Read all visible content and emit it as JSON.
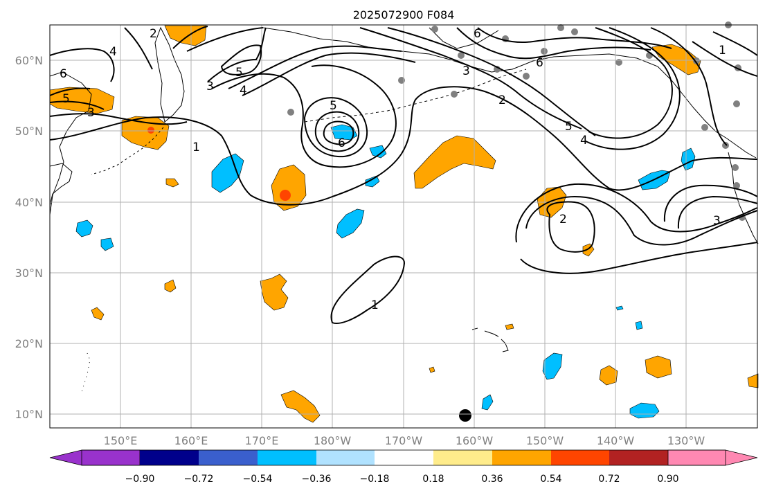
{
  "title": "2025072900 F084",
  "lat_labels": [
    "10°N",
    "20°N",
    "30°N",
    "40°N",
    "50°N",
    "60°N"
  ],
  "lon_labels": [
    "150°E",
    "160°E",
    "170°E",
    "180°W",
    "170°W",
    "160°W",
    "150°W",
    "140°W",
    "130°W"
  ],
  "contour_labels": [
    "1",
    "2",
    "3",
    "4",
    "5",
    "5",
    "6",
    "6",
    "1",
    "2",
    "3",
    "4",
    "5",
    "6",
    "2",
    "3",
    "1",
    "4",
    "5",
    "6",
    "3"
  ],
  "colorbar": {
    "colors": [
      "#9932cc",
      "#00008b",
      "#3a5fcd",
      "#00bfff",
      "#b0e2ff",
      "#ffffff",
      "#ffec8b",
      "#ffa500",
      "#ff4500",
      "#b22222",
      "#ff88b2"
    ],
    "tick_labels": [
      "−0.90",
      "−0.72",
      "−0.54",
      "−0.36",
      "−0.18",
      "0.18",
      "0.36",
      "0.54",
      "0.72",
      "0.90"
    ]
  },
  "colors": {
    "positive": "#ffa500",
    "positive_strong": "#ff4500",
    "negative": "#00bfff",
    "station": "#808080",
    "contour": "#000000",
    "grid": "#b0b0b0"
  }
}
